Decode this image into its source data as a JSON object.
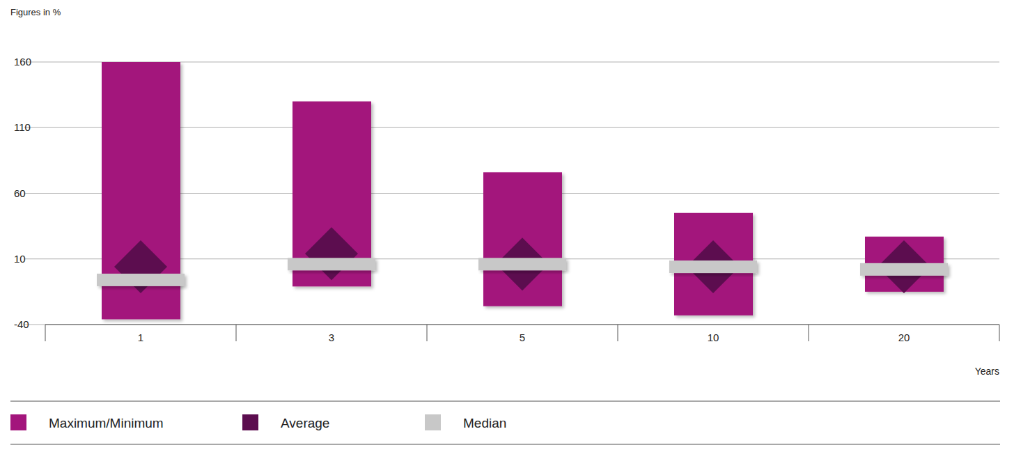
{
  "chart_data": {
    "type": "range",
    "subtitle": "Figures in %",
    "x_label": "Years",
    "categories": [
      "1",
      "3",
      "5",
      "10",
      "20"
    ],
    "series": [
      {
        "name": "Maximum/Minimum",
        "color": "#a3157c",
        "type": "range",
        "values": [
          160,
          130,
          76,
          45,
          27
        ],
        "low": [
          -36,
          -11,
          -26,
          -33,
          -15
        ]
      },
      {
        "name": "Average",
        "color": "#5c0d4f",
        "type": "diamond",
        "values": [
          4,
          14,
          6,
          4,
          4
        ]
      },
      {
        "name": "Median",
        "color": "#c8c8c8",
        "type": "median",
        "values": [
          -6,
          6,
          6,
          4,
          2
        ]
      }
    ],
    "ylim": [
      -40,
      160
    ],
    "yticks": [
      -40,
      10,
      60,
      110,
      160
    ],
    "grid": true,
    "legend": "bottom"
  }
}
